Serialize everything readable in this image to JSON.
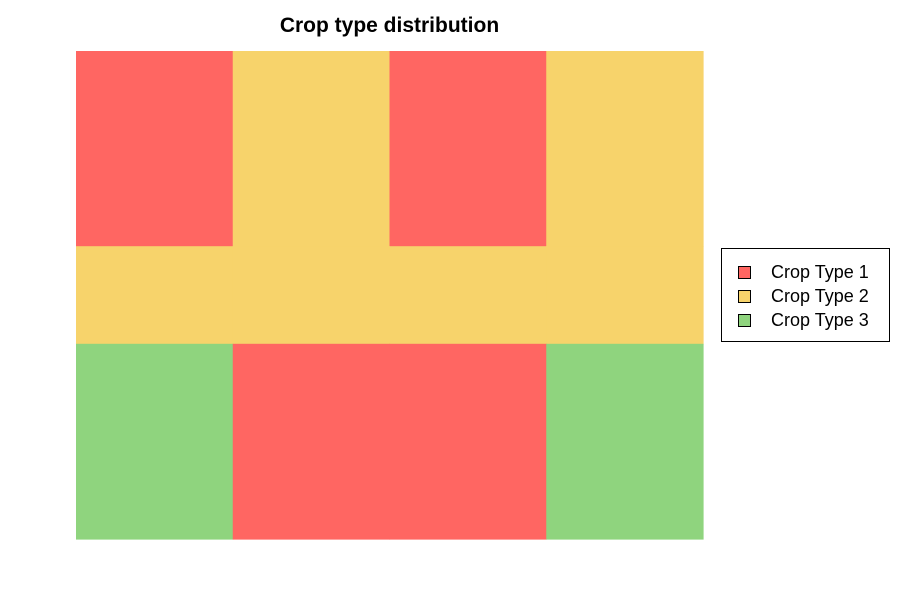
{
  "chart_data": {
    "type": "heatmap",
    "title": "Crop type distribution",
    "xlabel": "",
    "ylabel": "",
    "grid": false,
    "legend_position": "right",
    "columns": 4,
    "row_heights": [
      2,
      1,
      2
    ],
    "categories": [
      "Crop Type 1",
      "Crop Type 2",
      "Crop Type 3"
    ],
    "colors": [
      "#ff6662",
      "#f7d36b",
      "#8fd47e"
    ],
    "values": [
      [
        1,
        2,
        1,
        2
      ],
      [
        2,
        2,
        2,
        2
      ],
      [
        3,
        1,
        1,
        3
      ]
    ]
  },
  "legend": {
    "items": [
      {
        "label": "Crop Type 1",
        "color": "#ff6662"
      },
      {
        "label": "Crop Type 2",
        "color": "#f7d36b"
      },
      {
        "label": "Crop Type 3",
        "color": "#8fd47e"
      }
    ]
  }
}
